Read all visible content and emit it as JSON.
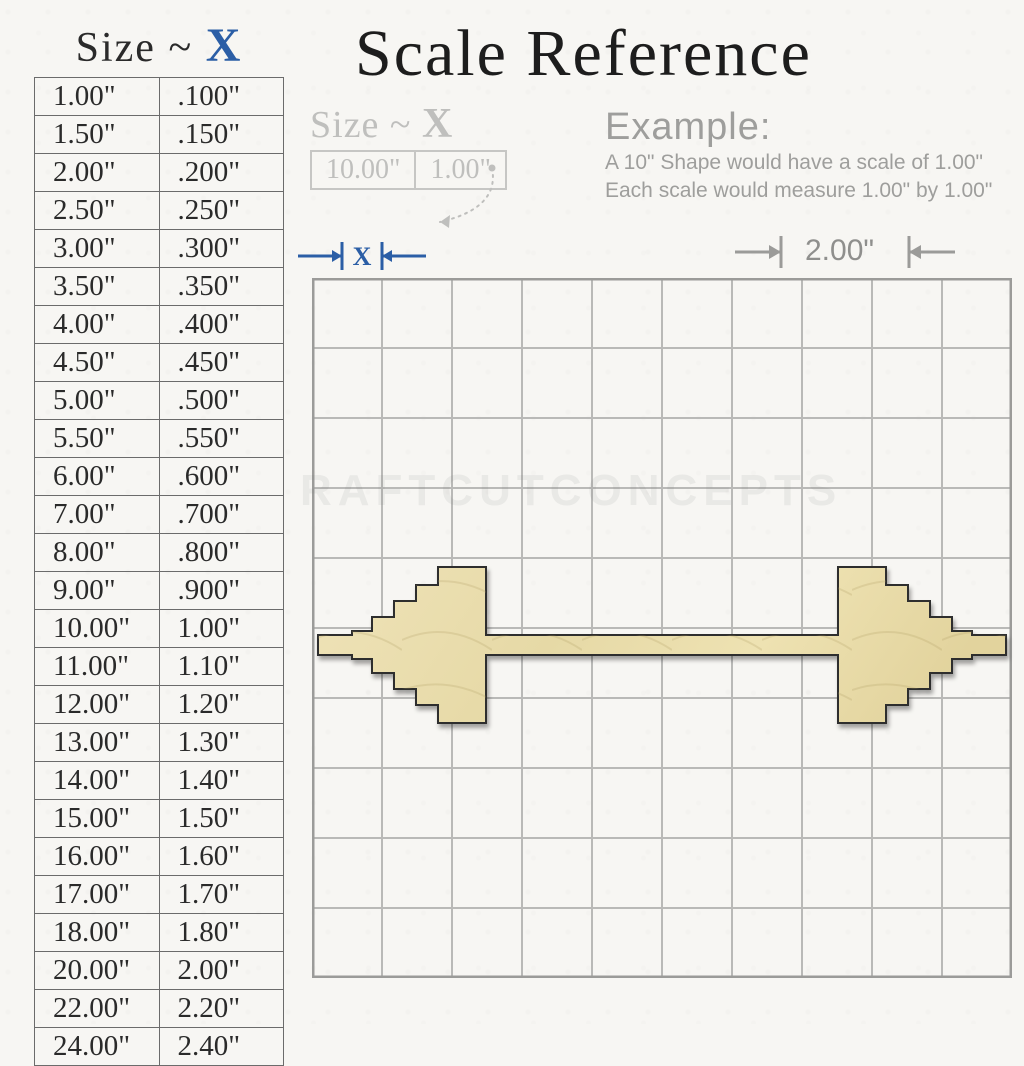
{
  "title": "Scale Reference",
  "left_table": {
    "header_prefix": "Size ~ ",
    "header_x": "X",
    "header_color": "#2a2a2a",
    "header_x_color": "#2b5ea6",
    "border_color": "#6b6b6b",
    "cell_fontsize": 29,
    "rows": [
      [
        "1.00\"",
        ".100\""
      ],
      [
        "1.50\"",
        ".150\""
      ],
      [
        "2.00\"",
        ".200\""
      ],
      [
        "2.50\"",
        ".250\""
      ],
      [
        "3.00\"",
        ".300\""
      ],
      [
        "3.50\"",
        ".350\""
      ],
      [
        "4.00\"",
        ".400\""
      ],
      [
        "4.50\"",
        ".450\""
      ],
      [
        "5.00\"",
        ".500\""
      ],
      [
        "5.50\"",
        ".550\""
      ],
      [
        "6.00\"",
        ".600\""
      ],
      [
        "7.00\"",
        ".700\""
      ],
      [
        "8.00\"",
        ".800\""
      ],
      [
        "9.00\"",
        ".900\""
      ],
      [
        "10.00\"",
        "1.00\""
      ],
      [
        "11.00\"",
        "1.10\""
      ],
      [
        "12.00\"",
        "1.20\""
      ],
      [
        "13.00\"",
        "1.30\""
      ],
      [
        "14.00\"",
        "1.40\""
      ],
      [
        "15.00\"",
        "1.50\""
      ],
      [
        "16.00\"",
        "1.60\""
      ],
      [
        "17.00\"",
        "1.70\""
      ],
      [
        "18.00\"",
        "1.80\""
      ],
      [
        "20.00\"",
        "2.00\""
      ],
      [
        "22.00\"",
        "2.20\""
      ],
      [
        "24.00\"",
        "2.40\""
      ]
    ]
  },
  "mini_box": {
    "header_prefix": "Size ~ ",
    "header_x": "X",
    "color": "#bfbfbd",
    "cells": [
      "10.00\"",
      "1.00\""
    ]
  },
  "example": {
    "title": "Example:",
    "line1": "A 10\" Shape would have a scale of 1.00\"",
    "line2": "Each scale would measure 1.00\" by 1.00\"",
    "color": "#9e9e9c"
  },
  "x_marker": {
    "label": "X",
    "arrow_color": "#2b5ea6",
    "label_color": "#2b5ea6"
  },
  "two_marker": {
    "label": "2.00\"",
    "arrow_color": "#9b9b99",
    "label_color": "#8f8f8d"
  },
  "grid": {
    "cells": 10,
    "outer_color": "#9b9b99",
    "line_color": "#b9b9b7",
    "background": "transparent"
  },
  "watermark": "RAFTCUTCONCEPTS",
  "barbell": {
    "fill": "#e8dcb0",
    "stroke": "#2e2e2e",
    "stroke_width": 2,
    "grain_color": "rgba(170,150,90,0.22)"
  },
  "colors": {
    "page_bg": "#f7f6f3",
    "title_color": "#1d1d1d"
  }
}
